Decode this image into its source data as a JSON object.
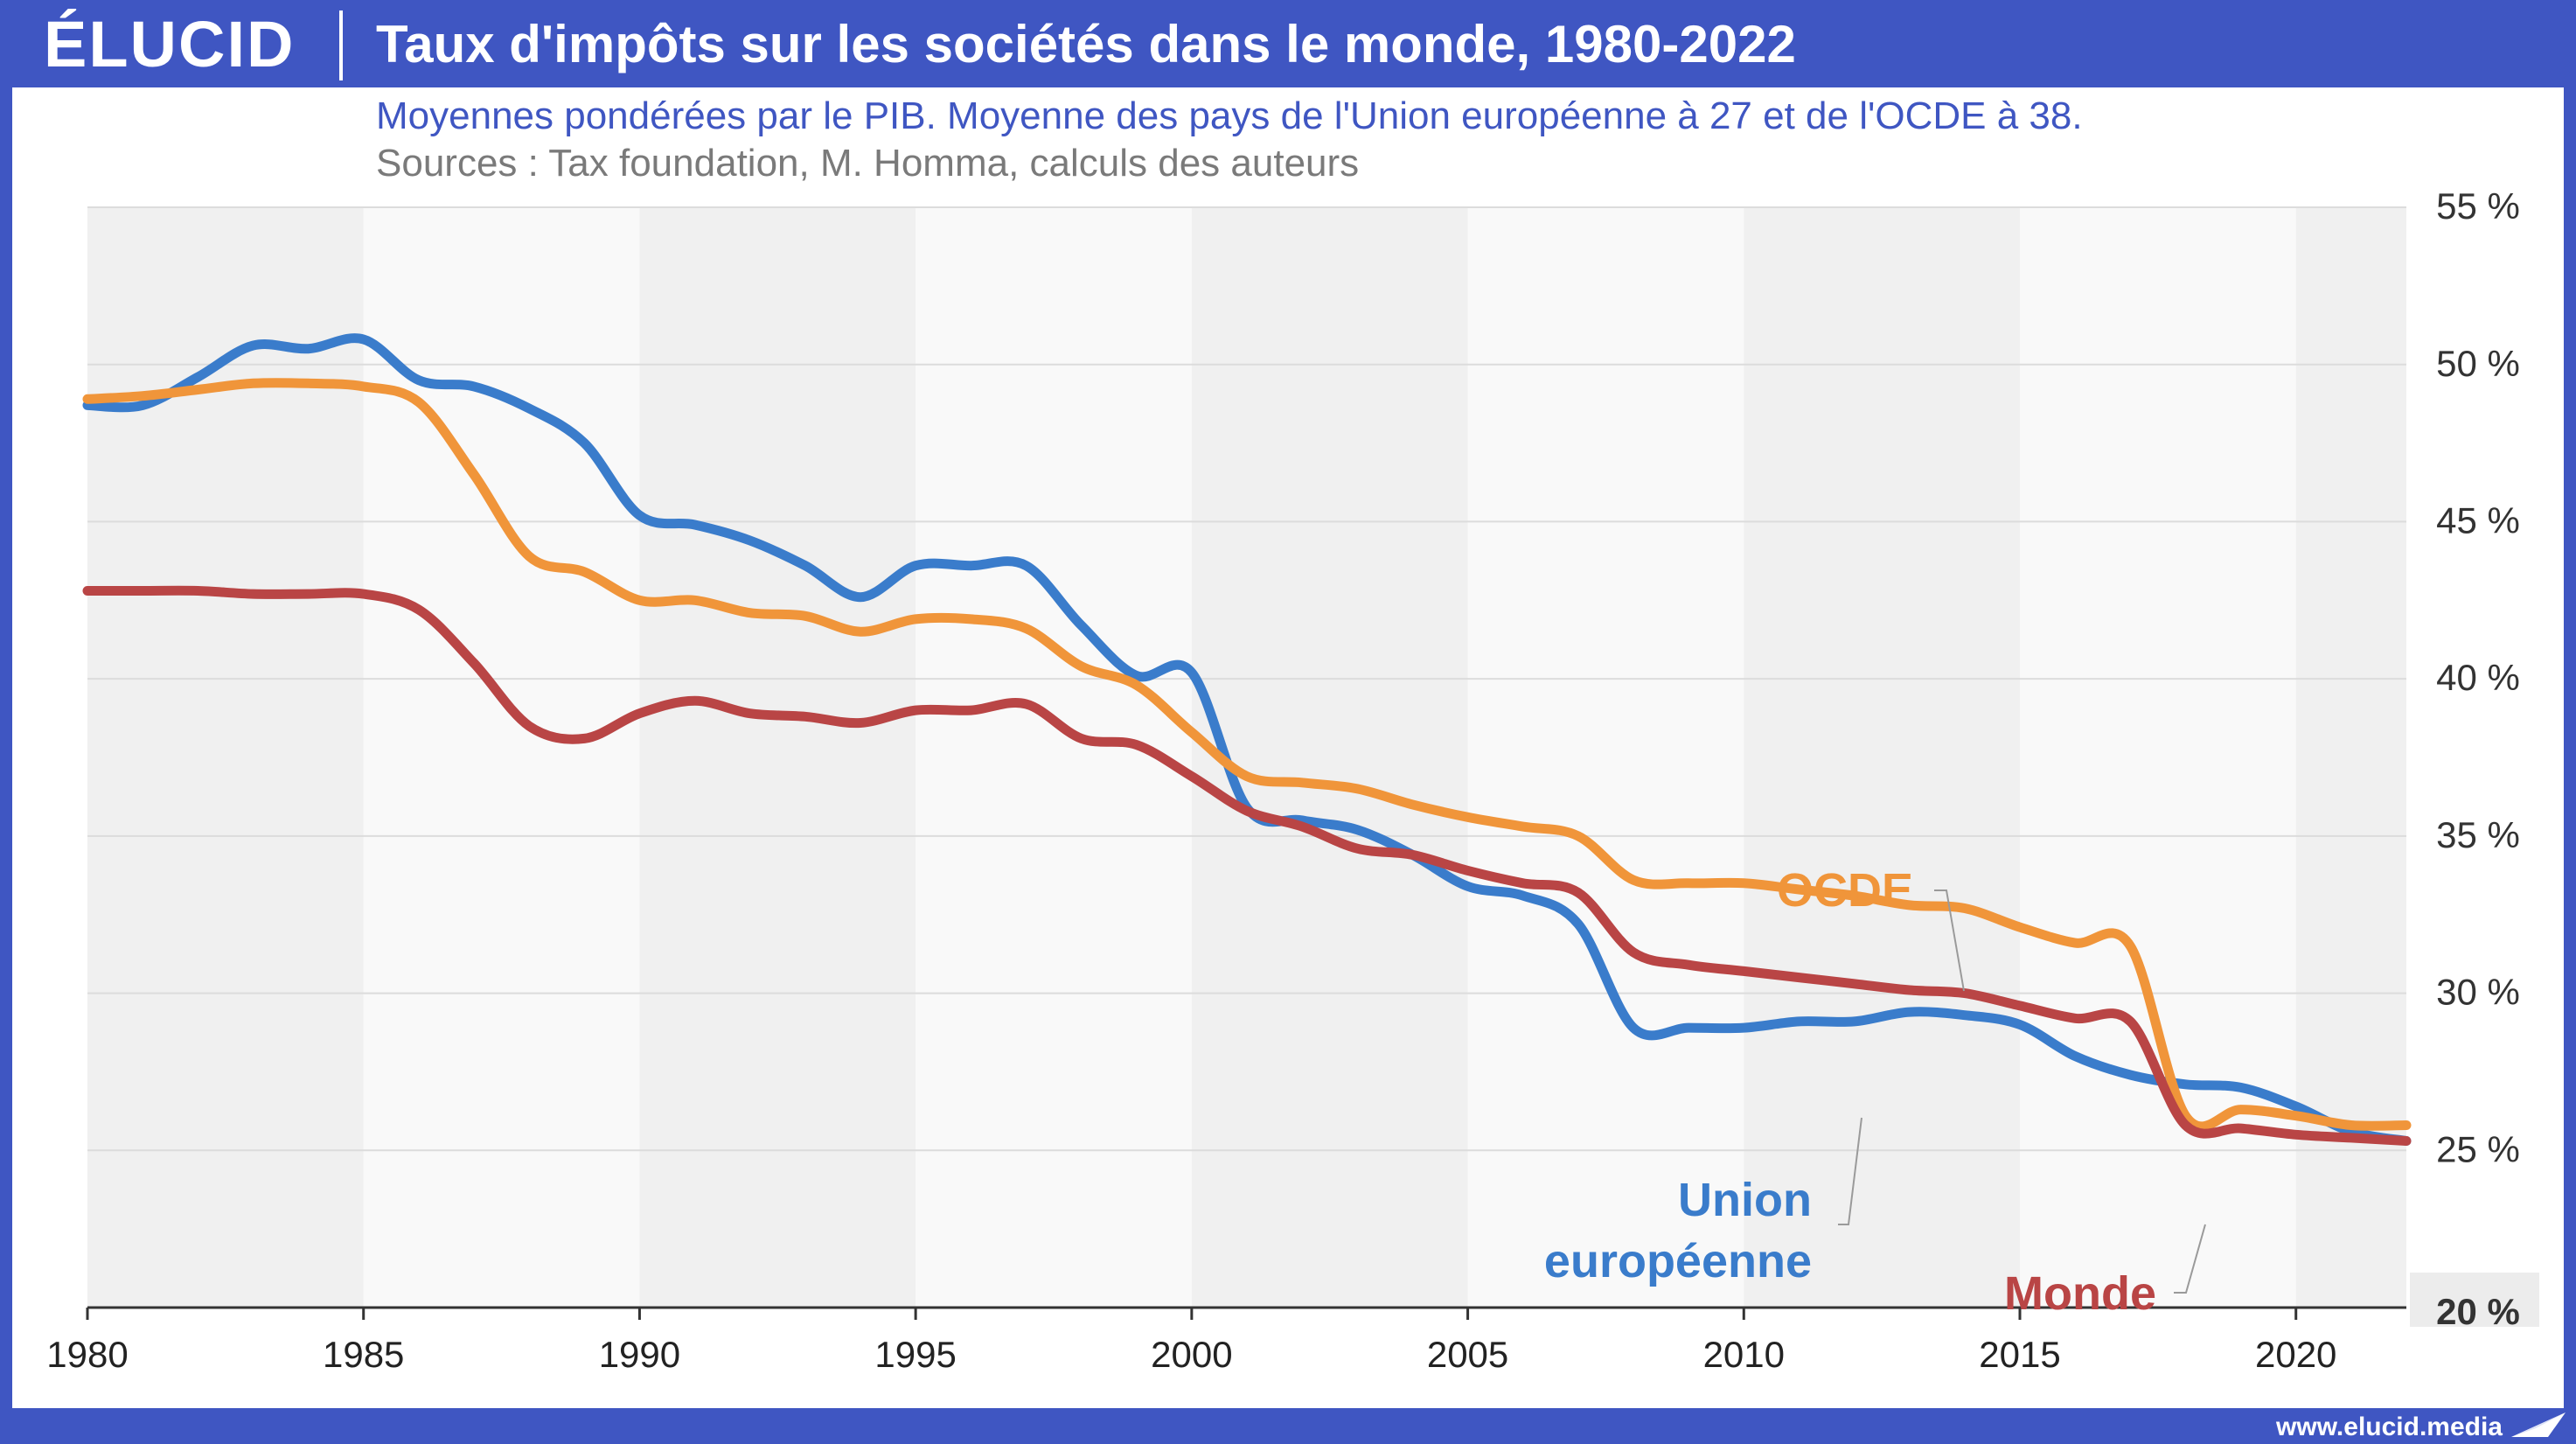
{
  "brand": {
    "logo_text": "ÉLUCID",
    "color": "#3f56c2"
  },
  "title": "Taux d'impôts sur les sociétés dans le monde, 1980-2022",
  "subtitle": "Moyennes pondérées par le PIB. Moyenne des pays de l'Union européenne à 27 et de l'OCDE à 38.",
  "sources": "Sources : Tax foundation, M. Homma, calculs des auteurs",
  "footer": {
    "url": "www.elucid.media"
  },
  "chart_data": {
    "type": "line",
    "xlim": [
      1980,
      2022
    ],
    "ylim": [
      20,
      55
    ],
    "x_ticks": [
      1980,
      1985,
      1990,
      1995,
      2000,
      2005,
      2010,
      2015,
      2020
    ],
    "x_tick_labels": [
      "1980",
      "1985",
      "1990",
      "1995",
      "2000",
      "2005",
      "2010",
      "2015",
      "2020"
    ],
    "y_ticks": [
      20,
      25,
      30,
      35,
      40,
      45,
      50,
      55
    ],
    "y_tick_labels": [
      "20 %",
      "25 %",
      "30 %",
      "35 %",
      "40 %",
      "45 %",
      "50 %",
      "55 %"
    ],
    "grid": true,
    "background_bands": "alternating 5-year bands",
    "x": [
      1980,
      1981,
      1982,
      1983,
      1984,
      1985,
      1986,
      1987,
      1988,
      1989,
      1990,
      1991,
      1992,
      1993,
      1994,
      1995,
      1996,
      1997,
      1998,
      1999,
      2000,
      2001,
      2002,
      2003,
      2004,
      2005,
      2006,
      2007,
      2008,
      2009,
      2010,
      2011,
      2012,
      2013,
      2014,
      2015,
      2016,
      2017,
      2018,
      2019,
      2020,
      2021,
      2022
    ],
    "series": [
      {
        "name": "Union européenne",
        "label_lines": [
          "Union",
          "européenne"
        ],
        "color": "#3a7ccb",
        "values": [
          48.7,
          48.7,
          49.6,
          50.6,
          50.5,
          50.8,
          49.5,
          49.3,
          48.6,
          47.5,
          45.2,
          44.9,
          44.4,
          43.6,
          42.6,
          43.6,
          43.6,
          43.6,
          41.7,
          40.1,
          40.2,
          35.9,
          35.5,
          35.2,
          34.4,
          33.4,
          33.1,
          32.2,
          28.9,
          28.9,
          28.9,
          29.1,
          29.1,
          29.4,
          29.3,
          29.0,
          28.0,
          27.4,
          27.1,
          27.0,
          26.4,
          25.6,
          25.3
        ]
      },
      {
        "name": "OCDE",
        "label_lines": [
          "OCDE"
        ],
        "color": "#f0953a",
        "values": [
          48.9,
          49.0,
          49.2,
          49.4,
          49.4,
          49.3,
          48.8,
          46.5,
          43.9,
          43.4,
          42.5,
          42.5,
          42.1,
          42.0,
          41.5,
          41.9,
          41.9,
          41.6,
          40.4,
          39.8,
          38.3,
          36.9,
          36.7,
          36.5,
          36.0,
          35.6,
          35.3,
          35.0,
          33.6,
          33.5,
          33.5,
          33.3,
          33.1,
          32.8,
          32.7,
          32.1,
          31.6,
          31.5,
          26.1,
          26.3,
          26.1,
          25.8,
          25.8
        ]
      },
      {
        "name": "Monde",
        "label_lines": [
          "Monde"
        ],
        "color": "#b94545",
        "values": [
          42.8,
          42.8,
          42.8,
          42.7,
          42.7,
          42.7,
          42.2,
          40.5,
          38.5,
          38.1,
          38.9,
          39.3,
          38.9,
          38.8,
          38.6,
          39.0,
          39.0,
          39.2,
          38.1,
          37.9,
          36.9,
          35.8,
          35.3,
          34.6,
          34.4,
          33.9,
          33.5,
          33.2,
          31.3,
          30.9,
          30.7,
          30.5,
          30.3,
          30.1,
          30.0,
          29.6,
          29.2,
          29.1,
          25.8,
          25.7,
          25.5,
          25.4,
          25.3
        ]
      }
    ]
  }
}
